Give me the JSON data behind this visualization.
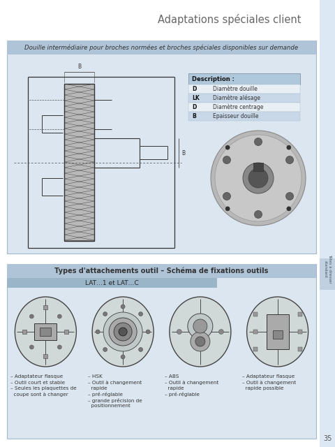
{
  "title": "Adaptations spéciales client",
  "title_color": "#666666",
  "bg_color": "#ffffff",
  "sidebar_color": "#c0d0e0",
  "sidebar_text": "Têtes à dresser\nstandard",
  "box1_title": "Douille intermédiaire pour broches normées et broches spéciales disponibles sur demande",
  "box1_bg": "#dce6f0",
  "box1_title_bg": "#b0c4d8",
  "box1_title_color": "#333333",
  "desc_header": "Description :",
  "desc_rows": [
    [
      "D",
      "Diamètre douille"
    ],
    [
      "LK",
      "Diamètre alésage"
    ],
    [
      "D",
      "Diamètre centrage"
    ],
    [
      "B",
      "Epaisseur douille"
    ]
  ],
  "box2_title": "Types d'attachements outil – Schéma de fixations outils",
  "box2_subtitle": "LAT…1 et LAT…C",
  "box2_bg": "#dce6f0",
  "box2_title_bg": "#b0c4d8",
  "box2_title_color": "#333333",
  "columns": [
    {
      "bullets": [
        "– Adaptateur flasque",
        "– Outil court et stable",
        "– Seules les plaquettes de",
        "  coupe sont à changer"
      ]
    },
    {
      "bullets": [
        "– HSK",
        "– Outil à changement",
        "  rapide",
        "– pré-réglable",
        "– grande précision de",
        "  positionnement"
      ]
    },
    {
      "bullets": [
        "– ABS",
        "– Outil à changement",
        "  rapide",
        "– pré-réglable"
      ]
    },
    {
      "bullets": [
        "– Adaptateur flasque",
        "– Outil à changement",
        "  rapide possible"
      ]
    }
  ],
  "page_num": "35"
}
